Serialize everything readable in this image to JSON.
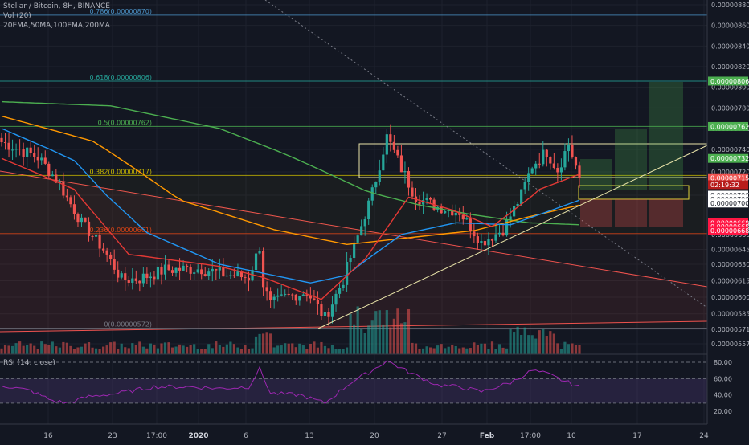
{
  "header": {
    "title": "Stellar / Bitcoin, 8H, BINANCE",
    "volume_label": "Vol (20)",
    "indicators_label": "20EMA,50MA,100EMA,200MA"
  },
  "rsi": {
    "label": "RSI (14, close)",
    "ticks": [
      "80.00",
      "60.00",
      "40.00",
      "20.00"
    ]
  },
  "colors": {
    "background": "#131722",
    "grid": "#1e222d",
    "up": "#26a69a",
    "down": "#ef5350",
    "ema20": "#e53935",
    "ma50": "#2196f3",
    "ema100": "#ff9800",
    "ma200": "#4caf50",
    "rsi": "#9c27b0",
    "green_tag": "#4caf50",
    "red_tag": "#ff1744"
  },
  "chart_data": {
    "type": "candlestick",
    "title": "Stellar / Bitcoin, 8H, BINANCE",
    "ylim": [
      5.5e-06,
      8.85e-06
    ],
    "y_ticks": [
      "0.00000880",
      "0.00000860",
      "0.00000840",
      "0.00000820",
      "0.00000800",
      "0.00000780",
      "0.00000760",
      "0.00000740",
      "0.00000720",
      "0.00000700",
      "0.00000660",
      "0.00000645",
      "0.00000630",
      "0.00000615",
      "0.00000600",
      "0.00000585",
      "0.00000571",
      "0.00000557"
    ],
    "x_ticks": [
      "16",
      "23",
      "17:00",
      "2020",
      "6",
      "13",
      "20",
      "27",
      "Feb",
      "17:00",
      "10",
      "17",
      "24"
    ],
    "fib_levels": [
      {
        "label": "0.786(0.00000870)",
        "value": 8.7e-06,
        "color": "#4a90c4"
      },
      {
        "label": "0.618(0.00000806)",
        "value": 8.06e-06,
        "color": "#26a69a"
      },
      {
        "label": "0.5(0.00000762)",
        "value": 7.62e-06,
        "color": "#4caf50"
      },
      {
        "label": "0.382(0.00000717)",
        "value": 7.17e-06,
        "color": "#c9b800"
      },
      {
        "label": "0.236(0.00000661)",
        "value": 6.61e-06,
        "color": "#d84315"
      },
      {
        "label": "0(0.00000572)",
        "value": 5.72e-06,
        "color": "#787b86"
      }
    ],
    "price_tags": [
      {
        "label": "0.00000806",
        "value": 8.06e-06,
        "color": "#4caf50"
      },
      {
        "label": "0.00000762",
        "value": 7.62e-06,
        "color": "#4caf50"
      },
      {
        "label": "0.00000732",
        "value": 7.32e-06,
        "color": "#4caf50"
      },
      {
        "label": "0.00000715",
        "value": 7.15e-06,
        "color": "#ef5350"
      },
      {
        "label": "02:19:32",
        "value": 7.09e-06,
        "color": "#b71c1c"
      },
      {
        "label": "0.00000700",
        "value": 7e-06,
        "color": "#ffffff"
      },
      {
        "label": "0.00000700",
        "value": 6.96e-06,
        "color": "#ffffff"
      },
      {
        "label": "0.00000700",
        "value": 6.92e-06,
        "color": "#ffffff"
      },
      {
        "label": "0.00000668",
        "value": 6.72e-06,
        "color": "#ff1744"
      },
      {
        "label": "0.00000668",
        "value": 6.68e-06,
        "color": "#ff1744"
      },
      {
        "label": "0.00000668",
        "value": 6.64e-06,
        "color": "#ff1744"
      }
    ],
    "last_price": 7.15e-06,
    "candle_count": 160,
    "price_path": [
      {
        "i": 0,
        "v": 7.47e-06
      },
      {
        "i": 10,
        "v": 7.33e-06
      },
      {
        "i": 16,
        "v": 7.1e-06
      },
      {
        "i": 22,
        "v": 6.72e-06
      },
      {
        "i": 28,
        "v": 6.45e-06
      },
      {
        "i": 33,
        "v": 6.16e-06
      },
      {
        "i": 38,
        "v": 6.17e-06
      },
      {
        "i": 45,
        "v": 6.25e-06
      },
      {
        "i": 55,
        "v": 6.26e-06
      },
      {
        "i": 61,
        "v": 6.21e-06
      },
      {
        "i": 68,
        "v": 6.18e-06
      },
      {
        "i": 71,
        "v": 6.48e-06
      },
      {
        "i": 72,
        "v": 6.12e-06
      },
      {
        "i": 74,
        "v": 5.93e-06
      },
      {
        "i": 78,
        "v": 6e-06
      },
      {
        "i": 84,
        "v": 6.05e-06
      },
      {
        "i": 89,
        "v": 5.81e-06
      },
      {
        "i": 94,
        "v": 6.16e-06
      },
      {
        "i": 98,
        "v": 6.58e-06
      },
      {
        "i": 102,
        "v": 7.02e-06
      },
      {
        "i": 106,
        "v": 7.52e-06
      },
      {
        "i": 110,
        "v": 7.23e-06
      },
      {
        "i": 114,
        "v": 6.98e-06
      },
      {
        "i": 120,
        "v": 6.88e-06
      },
      {
        "i": 126,
        "v": 6.83e-06
      },
      {
        "i": 132,
        "v": 6.52e-06
      },
      {
        "i": 138,
        "v": 6.65e-06
      },
      {
        "i": 143,
        "v": 7e-06
      },
      {
        "i": 146,
        "v": 7.26e-06
      },
      {
        "i": 150,
        "v": 7.38e-06
      },
      {
        "i": 153,
        "v": 7.22e-06
      },
      {
        "i": 156,
        "v": 7.45e-06
      },
      {
        "i": 159,
        "v": 7.15e-06
      }
    ],
    "ema20_path": [
      {
        "i": 0,
        "v": 7.32e-06
      },
      {
        "i": 20,
        "v": 7.05e-06
      },
      {
        "i": 35,
        "v": 6.4e-06
      },
      {
        "i": 60,
        "v": 6.28e-06
      },
      {
        "i": 72,
        "v": 6.18e-06
      },
      {
        "i": 88,
        "v": 5.98e-06
      },
      {
        "i": 100,
        "v": 6.35e-06
      },
      {
        "i": 112,
        "v": 6.98e-06
      },
      {
        "i": 124,
        "v": 6.85e-06
      },
      {
        "i": 135,
        "v": 6.68e-06
      },
      {
        "i": 148,
        "v": 7.05e-06
      },
      {
        "i": 159,
        "v": 7.18e-06
      }
    ],
    "ma50_path": [
      {
        "i": 0,
        "v": 7.6e-06
      },
      {
        "i": 20,
        "v": 7.3e-06
      },
      {
        "i": 40,
        "v": 6.62e-06
      },
      {
        "i": 60,
        "v": 6.3e-06
      },
      {
        "i": 85,
        "v": 6.13e-06
      },
      {
        "i": 95,
        "v": 6.2e-06
      },
      {
        "i": 110,
        "v": 6.6e-06
      },
      {
        "i": 125,
        "v": 6.72e-06
      },
      {
        "i": 140,
        "v": 6.7e-06
      },
      {
        "i": 150,
        "v": 6.83e-06
      },
      {
        "i": 159,
        "v": 6.95e-06
      }
    ],
    "ema100_path": [
      {
        "i": 0,
        "v": 7.72e-06
      },
      {
        "i": 25,
        "v": 7.48e-06
      },
      {
        "i": 50,
        "v": 6.94e-06
      },
      {
        "i": 75,
        "v": 6.65e-06
      },
      {
        "i": 95,
        "v": 6.5e-06
      },
      {
        "i": 110,
        "v": 6.56e-06
      },
      {
        "i": 130,
        "v": 6.64e-06
      },
      {
        "i": 145,
        "v": 6.78e-06
      },
      {
        "i": 159,
        "v": 6.9e-06
      }
    ],
    "ma200_path": [
      {
        "i": 0,
        "v": 7.86e-06
      },
      {
        "i": 30,
        "v": 7.82e-06
      },
      {
        "i": 60,
        "v": 7.6e-06
      },
      {
        "i": 80,
        "v": 7.33e-06
      },
      {
        "i": 100,
        "v": 7.04e-06
      },
      {
        "i": 115,
        "v": 6.9e-06
      },
      {
        "i": 130,
        "v": 6.8e-06
      },
      {
        "i": 145,
        "v": 6.72e-06
      },
      {
        "i": 159,
        "v": 6.7e-06
      }
    ],
    "rsi_path": [
      {
        "i": 0,
        "v": 52
      },
      {
        "i": 8,
        "v": 45
      },
      {
        "i": 14,
        "v": 33
      },
      {
        "i": 18,
        "v": 30
      },
      {
        "i": 24,
        "v": 38
      },
      {
        "i": 32,
        "v": 42
      },
      {
        "i": 42,
        "v": 50
      },
      {
        "i": 52,
        "v": 50
      },
      {
        "i": 60,
        "v": 48
      },
      {
        "i": 68,
        "v": 50
      },
      {
        "i": 71,
        "v": 72
      },
      {
        "i": 74,
        "v": 42
      },
      {
        "i": 82,
        "v": 40
      },
      {
        "i": 89,
        "v": 30
      },
      {
        "i": 96,
        "v": 55
      },
      {
        "i": 102,
        "v": 70
      },
      {
        "i": 106,
        "v": 82
      },
      {
        "i": 112,
        "v": 68
      },
      {
        "i": 120,
        "v": 52
      },
      {
        "i": 126,
        "v": 50
      },
      {
        "i": 132,
        "v": 44
      },
      {
        "i": 140,
        "v": 55
      },
      {
        "i": 146,
        "v": 70
      },
      {
        "i": 150,
        "v": 66
      },
      {
        "i": 156,
        "v": 55
      },
      {
        "i": 159,
        "v": 50
      }
    ]
  }
}
